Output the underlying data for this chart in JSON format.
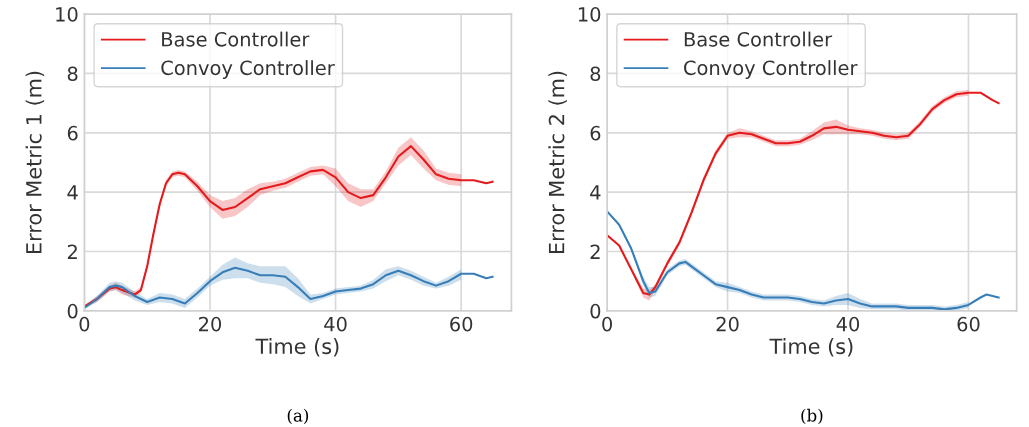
{
  "chart_data": [
    {
      "type": "line",
      "xlabel": "Time (s)",
      "ylabel": "Error Metric 1 (m)",
      "xlim": [
        0,
        68
      ],
      "ylim": [
        0,
        10
      ],
      "xticks": [
        0,
        20,
        40,
        60
      ],
      "yticks": [
        0,
        2,
        4,
        6,
        8,
        10
      ],
      "grid": true,
      "legend": "top left",
      "marker": "none",
      "line_style": "solid",
      "annotations": [
        "(a)"
      ],
      "series": [
        {
          "name": "Base Controller",
          "color": "#e41a1c",
          "x": [
            0,
            2,
            4,
            5,
            6,
            8,
            9,
            10,
            11,
            12,
            13,
            14,
            15,
            16,
            18,
            20,
            22,
            24,
            26,
            28,
            30,
            32,
            34,
            36,
            38,
            40,
            42,
            44,
            46,
            48,
            50,
            52,
            54,
            56,
            58,
            60,
            62,
            64,
            65
          ],
          "values": [
            0.15,
            0.4,
            0.75,
            0.8,
            0.7,
            0.55,
            0.7,
            1.5,
            2.6,
            3.6,
            4.3,
            4.6,
            4.65,
            4.6,
            4.2,
            3.7,
            3.4,
            3.5,
            3.8,
            4.1,
            4.2,
            4.3,
            4.5,
            4.7,
            4.75,
            4.5,
            4.0,
            3.8,
            3.9,
            4.5,
            5.2,
            5.55,
            5.1,
            4.6,
            4.45,
            4.4,
            4.4,
            4.3,
            4.35
          ],
          "lower": [
            0.1,
            0.3,
            0.65,
            0.7,
            0.55,
            0.45,
            0.6,
            1.4,
            2.5,
            3.5,
            4.2,
            4.5,
            4.55,
            4.5,
            4.05,
            3.5,
            3.1,
            3.2,
            3.5,
            3.9,
            4.05,
            4.15,
            4.35,
            4.55,
            4.6,
            4.2,
            3.7,
            3.5,
            3.7,
            4.3,
            4.9,
            5.25,
            4.8,
            4.4,
            4.25,
            4.2,
            null,
            null,
            null
          ],
          "upper": [
            0.2,
            0.5,
            0.85,
            0.95,
            0.85,
            0.65,
            0.8,
            1.6,
            2.7,
            3.7,
            4.4,
            4.7,
            4.75,
            4.7,
            4.35,
            3.9,
            3.7,
            3.8,
            4.1,
            4.3,
            4.35,
            4.45,
            4.65,
            4.85,
            4.9,
            4.8,
            4.3,
            4.1,
            4.1,
            4.7,
            5.5,
            5.85,
            5.4,
            4.8,
            4.65,
            4.6,
            null,
            null,
            null
          ]
        },
        {
          "name": "Convoy Controller",
          "color": "#377eb8",
          "x": [
            0,
            2,
            4,
            5,
            6,
            8,
            10,
            12,
            14,
            16,
            18,
            20,
            22,
            24,
            26,
            28,
            30,
            32,
            34,
            36,
            38,
            40,
            42,
            44,
            46,
            48,
            50,
            52,
            54,
            56,
            58,
            60,
            62,
            64,
            65
          ],
          "values": [
            0.1,
            0.4,
            0.8,
            0.85,
            0.8,
            0.5,
            0.3,
            0.45,
            0.4,
            0.25,
            0.6,
            1.0,
            1.3,
            1.45,
            1.35,
            1.2,
            1.2,
            1.15,
            0.8,
            0.4,
            0.5,
            0.65,
            0.7,
            0.75,
            0.9,
            1.2,
            1.35,
            1.2,
            1.0,
            0.85,
            1.0,
            1.25,
            1.25,
            1.1,
            1.15
          ],
          "lower": [
            0.05,
            0.3,
            0.65,
            0.7,
            0.6,
            0.35,
            0.2,
            0.3,
            0.25,
            0.1,
            0.45,
            0.85,
            1.05,
            1.1,
            1.1,
            0.95,
            0.9,
            0.8,
            0.5,
            0.25,
            0.4,
            0.55,
            0.6,
            0.65,
            0.75,
            1.0,
            1.2,
            1.05,
            0.85,
            0.75,
            0.85,
            1.05,
            null,
            null,
            null
          ],
          "upper": [
            0.15,
            0.5,
            0.95,
            1.0,
            0.95,
            0.65,
            0.4,
            0.6,
            0.55,
            0.4,
            0.75,
            1.15,
            1.55,
            1.8,
            1.6,
            1.5,
            1.5,
            1.5,
            1.1,
            0.55,
            0.6,
            0.75,
            0.8,
            0.85,
            1.05,
            1.4,
            1.5,
            1.35,
            1.15,
            0.95,
            1.15,
            1.4,
            null,
            null,
            null
          ]
        }
      ]
    },
    {
      "type": "line",
      "xlabel": "Time (s)",
      "ylabel": "Error Metric 2 (m)",
      "xlim": [
        0,
        68
      ],
      "ylim": [
        0,
        10
      ],
      "xticks": [
        0,
        20,
        40,
        60
      ],
      "yticks": [
        0,
        2,
        4,
        6,
        8,
        10
      ],
      "grid": true,
      "legend": "top left",
      "marker": "none",
      "line_style": "solid",
      "annotations": [
        "(b)"
      ],
      "series": [
        {
          "name": "Base Controller",
          "color": "#e41a1c",
          "x": [
            0,
            2,
            4,
            6,
            7,
            8,
            10,
            12,
            14,
            16,
            18,
            20,
            22,
            24,
            26,
            28,
            30,
            32,
            34,
            36,
            38,
            40,
            42,
            44,
            46,
            48,
            50,
            52,
            54,
            56,
            58,
            60,
            62,
            64,
            65
          ],
          "values": [
            2.55,
            2.2,
            1.4,
            0.6,
            0.55,
            0.8,
            1.6,
            2.3,
            3.3,
            4.4,
            5.3,
            5.9,
            6.0,
            5.95,
            5.8,
            5.65,
            5.65,
            5.7,
            5.9,
            6.15,
            6.2,
            6.1,
            6.05,
            6.0,
            5.9,
            5.85,
            5.9,
            6.3,
            6.8,
            7.1,
            7.3,
            7.35,
            7.35,
            7.1,
            7.0
          ],
          "lower": [
            2.55,
            2.2,
            1.35,
            0.45,
            0.35,
            0.7,
            1.5,
            2.2,
            3.2,
            4.3,
            5.2,
            5.8,
            5.85,
            5.85,
            5.7,
            5.55,
            5.55,
            5.6,
            5.75,
            5.95,
            5.95,
            5.95,
            5.95,
            5.9,
            5.8,
            5.75,
            5.8,
            6.2,
            6.7,
            7.0,
            7.2,
            7.25,
            null,
            null,
            null
          ],
          "upper": [
            2.55,
            2.2,
            1.45,
            0.75,
            0.7,
            0.9,
            1.7,
            2.4,
            3.4,
            4.5,
            5.4,
            6.0,
            6.15,
            6.05,
            5.9,
            5.75,
            5.75,
            5.8,
            6.05,
            6.35,
            6.45,
            6.25,
            6.15,
            6.1,
            6.0,
            5.95,
            6.0,
            6.4,
            6.9,
            7.2,
            7.4,
            7.45,
            null,
            null,
            null
          ]
        },
        {
          "name": "Convoy Controller",
          "color": "#377eb8",
          "x": [
            0,
            2,
            4,
            6,
            7,
            8,
            10,
            12,
            13,
            14,
            16,
            18,
            20,
            22,
            24,
            26,
            28,
            30,
            32,
            34,
            36,
            38,
            40,
            42,
            44,
            46,
            48,
            50,
            52,
            54,
            56,
            58,
            60,
            62,
            63,
            64,
            65
          ],
          "values": [
            3.35,
            2.9,
            2.1,
            1.0,
            0.6,
            0.65,
            1.3,
            1.6,
            1.65,
            1.5,
            1.2,
            0.9,
            0.8,
            0.7,
            0.55,
            0.45,
            0.45,
            0.45,
            0.4,
            0.3,
            0.25,
            0.35,
            0.4,
            0.25,
            0.15,
            0.15,
            0.15,
            0.1,
            0.1,
            0.1,
            0.05,
            0.1,
            0.2,
            0.45,
            0.55,
            0.5,
            0.45
          ],
          "lower": [
            3.35,
            2.9,
            2.05,
            0.85,
            0.45,
            0.5,
            1.2,
            1.5,
            1.55,
            1.4,
            1.1,
            0.8,
            0.65,
            0.6,
            0.45,
            0.35,
            0.35,
            0.35,
            0.3,
            0.2,
            0.15,
            0.2,
            0.2,
            0.1,
            0.05,
            0.05,
            0.05,
            0.0,
            0.0,
            0.0,
            0.0,
            0.0,
            0.1,
            null,
            null,
            null,
            null
          ],
          "upper": [
            3.35,
            2.9,
            2.15,
            1.15,
            0.8,
            0.8,
            1.4,
            1.7,
            1.75,
            1.6,
            1.3,
            1.0,
            0.95,
            0.8,
            0.65,
            0.55,
            0.55,
            0.55,
            0.5,
            0.4,
            0.35,
            0.5,
            0.6,
            0.4,
            0.25,
            0.25,
            0.25,
            0.2,
            0.2,
            0.2,
            0.15,
            0.2,
            0.3,
            null,
            null,
            null,
            null
          ]
        }
      ]
    }
  ]
}
